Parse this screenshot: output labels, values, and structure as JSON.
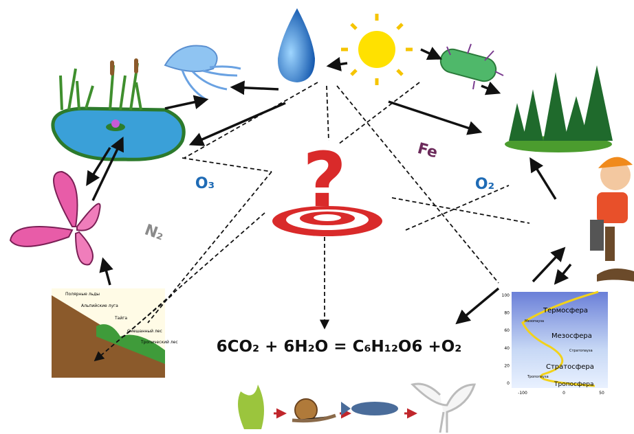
{
  "labels": {
    "ozone": "O₃",
    "nitrogen": "N₂",
    "iron": "Fe",
    "oxygen": "O₂"
  },
  "question_mark": "?",
  "equation": "6CO₂ + 6H₂O = C₆H₁₂O6 +O₂",
  "vegetation_zones": [
    "Полярные льды",
    "Альпийские луга",
    "Тайга",
    "Смешанный лес",
    "Тропический лес"
  ],
  "atmosphere": {
    "layers": [
      "Термосфера",
      "Мезосфера",
      "Стратосфера",
      "Тропосфера"
    ],
    "boundaries": [
      "Мезопауза",
      "Стратопауза",
      "Тропопауза"
    ],
    "yticks": [
      "100",
      "80",
      "60",
      "40",
      "20",
      "0"
    ],
    "xticks": [
      "-100",
      "0",
      "50"
    ]
  }
}
